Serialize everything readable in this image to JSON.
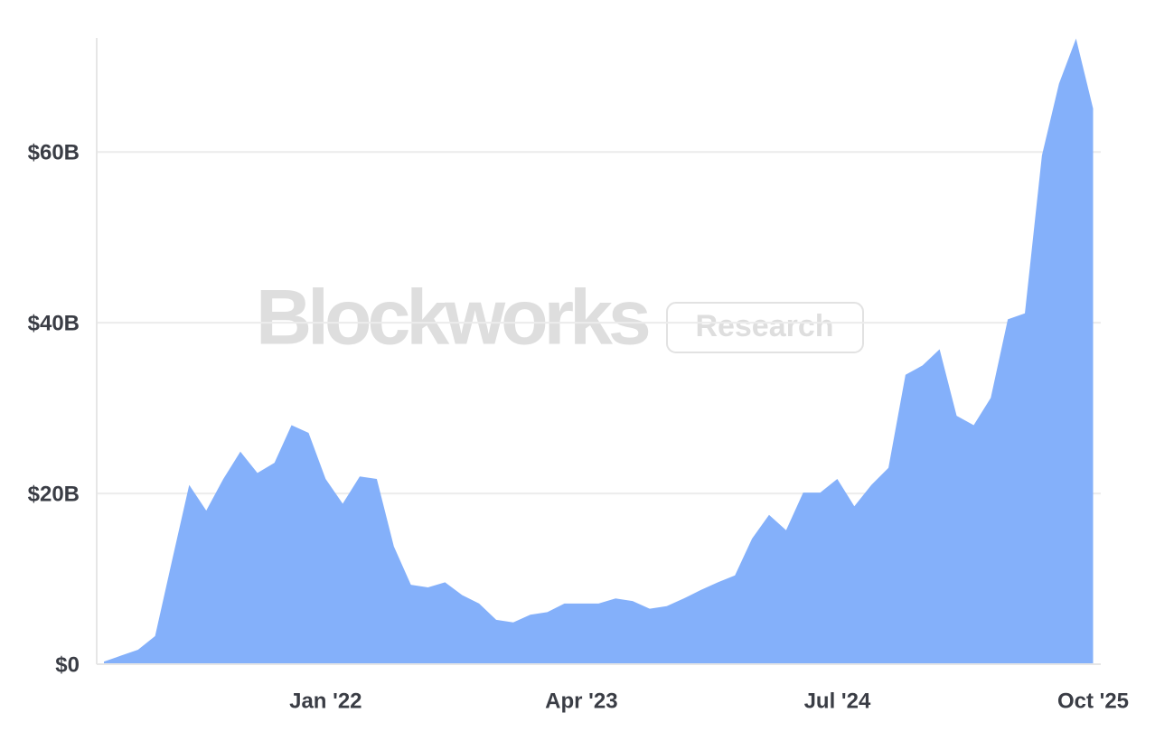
{
  "chart_data": {
    "type": "area",
    "watermark": "Blockworks",
    "watermark_badge": "Research",
    "x": [
      "2020-12",
      "2021-01",
      "2021-02",
      "2021-03",
      "2021-04",
      "2021-05",
      "2021-06",
      "2021-07",
      "2021-08",
      "2021-09",
      "2021-10",
      "2021-11",
      "2021-12",
      "2022-01",
      "2022-02",
      "2022-03",
      "2022-04",
      "2022-05",
      "2022-06",
      "2022-07",
      "2022-08",
      "2022-09",
      "2022-10",
      "2022-11",
      "2022-12",
      "2023-01",
      "2023-02",
      "2023-03",
      "2023-04",
      "2023-05",
      "2023-06",
      "2023-07",
      "2023-08",
      "2023-09",
      "2023-10",
      "2023-11",
      "2023-12",
      "2024-01",
      "2024-02",
      "2024-03",
      "2024-04",
      "2024-05",
      "2024-06",
      "2024-07",
      "2024-08",
      "2024-09",
      "2024-10",
      "2024-11",
      "2024-12",
      "2025-01",
      "2025-02",
      "2025-03",
      "2025-04",
      "2025-05",
      "2025-06",
      "2025-07",
      "2025-08",
      "2025-09",
      "2025-10"
    ],
    "values": [
      0.3,
      1,
      1.7,
      3.3,
      12.2,
      21,
      18,
      21.7,
      24.9,
      22.4,
      23.6,
      28,
      27.1,
      21.7,
      18.8,
      22,
      21.7,
      13.8,
      9.3,
      9,
      9.6,
      8.1,
      7.1,
      5.2,
      4.9,
      5.8,
      6.1,
      7.1,
      7.1,
      7.1,
      7.7,
      7.4,
      6.5,
      6.8,
      7.7,
      8.7,
      9.6,
      10.4,
      14.7,
      17.5,
      15.7,
      20.1,
      20.1,
      21.7,
      18.5,
      21,
      23,
      33.9,
      35,
      36.9,
      29.1,
      28,
      31.2,
      40.4,
      41.1,
      59.6,
      68,
      73.3,
      65.1
    ],
    "color": "#80adfa",
    "ylim": [
      0,
      74
    ],
    "yticks": [
      {
        "value": 0,
        "label": "$0"
      },
      {
        "value": 20,
        "label": "$20B"
      },
      {
        "value": 40,
        "label": "$40B"
      },
      {
        "value": 60,
        "label": "$60B"
      }
    ],
    "xticks": [
      {
        "value": "2022-01",
        "label": "Jan '22"
      },
      {
        "value": "2023-04",
        "label": "Apr '23"
      },
      {
        "value": "2024-07",
        "label": "Jul '24"
      },
      {
        "value": "2025-10",
        "label": "Oct '25"
      }
    ],
    "grid": true
  }
}
